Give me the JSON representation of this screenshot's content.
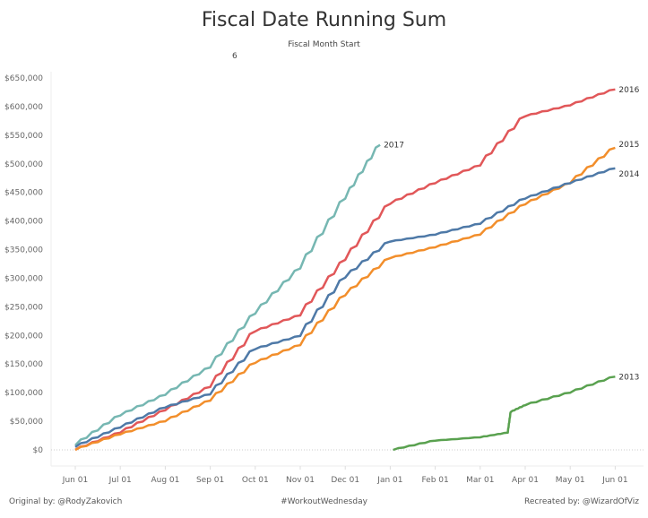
{
  "header": {
    "title": "Fiscal Date Running Sum",
    "parameter_label": "Fiscal Month Start",
    "parameter_value": "6"
  },
  "footer": {
    "left": "Original by: @RodyZakovich",
    "center": "#WorkoutWednesday",
    "right": "Recreated by: @WizardOfViz"
  },
  "chart_data": {
    "type": "line",
    "title": "Fiscal Date Running Sum",
    "xlabel": "",
    "ylabel": "",
    "x_ticks": [
      "Jun 01",
      "Jul 01",
      "Aug 01",
      "Sep 01",
      "Oct 01",
      "Nov 01",
      "Dec 01",
      "Jan 01",
      "Feb 01",
      "Mar 01",
      "Apr 01",
      "May 01",
      "Jun 01"
    ],
    "y_ticks": [
      "$0",
      "$50,000",
      "$100,000",
      "$150,000",
      "$200,000",
      "$250,000",
      "$300,000",
      "$350,000",
      "$400,000",
      "$450,000",
      "$500,000",
      "$550,000",
      "$600,000",
      "$650,000"
    ],
    "ylim": [
      0,
      650000
    ],
    "grid": "zero line only (dotted)",
    "labels": "series name at line end",
    "series": [
      {
        "name": "2017",
        "color": "#76b7b2",
        "x": [
          "Jun 01",
          "Jul 01",
          "Aug 01",
          "Sep 01",
          "Oct 01",
          "Nov 01",
          "Dec 01",
          "Dec 25"
        ],
        "y": [
          8000,
          60000,
          96000,
          144000,
          238000,
          317000,
          439000,
          533000
        ]
      },
      {
        "name": "2016",
        "color": "#e15759",
        "x": [
          "Jun 01",
          "Jul 01",
          "Aug 01",
          "Sep 01",
          "Oct 01",
          "Nov 01",
          "Dec 01",
          "Jan 01",
          "Feb 01",
          "Mar 01",
          "Apr 01",
          "May 01",
          "Jun 01"
        ],
        "y": [
          0,
          30000,
          69000,
          110000,
          207000,
          235000,
          332000,
          430000,
          466000,
          497000,
          583000,
          602000,
          630000
        ]
      },
      {
        "name": "2015",
        "color": "#f28e2b",
        "x": [
          "Jun 01",
          "Jul 01",
          "Aug 01",
          "Sep 01",
          "Oct 01",
          "Nov 01",
          "Dec 01",
          "Jan 01",
          "Feb 01",
          "Mar 01",
          "Apr 01",
          "May 01",
          "Jun 01"
        ],
        "y": [
          0,
          27000,
          50000,
          86000,
          152000,
          183000,
          270000,
          335000,
          354000,
          376000,
          429000,
          466000,
          528000
        ]
      },
      {
        "name": "2014",
        "color": "#4e79a7",
        "x": [
          "Jun 01",
          "Jul 01",
          "Aug 01",
          "Sep 01",
          "Oct 01",
          "Nov 01",
          "Dec 01",
          "Jan 01",
          "Feb 01",
          "Mar 01",
          "Apr 01",
          "May 01",
          "Jun 01"
        ],
        "y": [
          5000,
          39000,
          74000,
          97000,
          176000,
          199000,
          301000,
          364000,
          376000,
          395000,
          439000,
          466000,
          492000
        ]
      },
      {
        "name": "2013",
        "color": "#59a14f",
        "x": [
          "Jan 03",
          "Feb 01",
          "Mar 01",
          "Mar 20",
          "Mar 22",
          "Apr 01",
          "May 01",
          "Jun 01"
        ],
        "y": [
          0,
          16000,
          22000,
          30000,
          66000,
          78000,
          100000,
          128000
        ]
      }
    ]
  }
}
